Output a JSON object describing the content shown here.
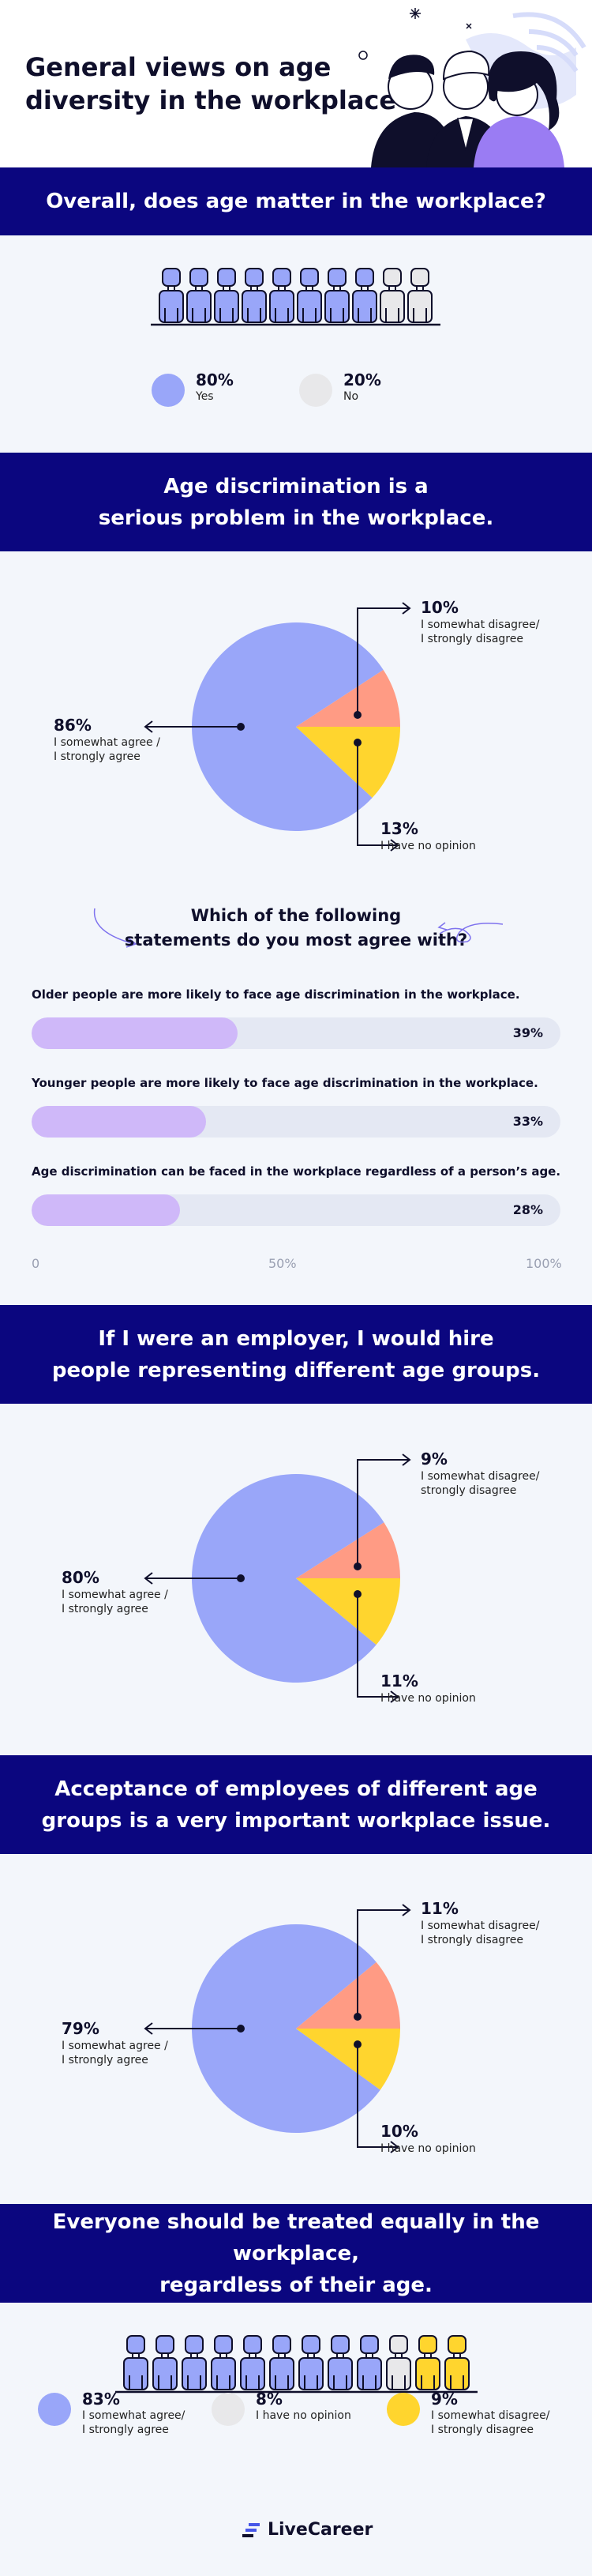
{
  "header": {
    "title_line1": "General views on age",
    "title_line2": "diversity in the workplace"
  },
  "colors": {
    "banner": "#0b067f",
    "blue": "#99a6f9",
    "salmon": "#ff9b84",
    "yellow": "#ffd52e",
    "grey": "#e8e8ea",
    "lavender": "#cfb8f9"
  },
  "section1": {
    "heading": "Overall, does age matter in the workplace?",
    "icon_fills": [
      "blue",
      "blue",
      "blue",
      "blue",
      "blue",
      "blue",
      "blue",
      "blue",
      "grey",
      "grey"
    ],
    "legend": [
      {
        "pct": "80%",
        "label": "Yes",
        "color": "blue"
      },
      {
        "pct": "20%",
        "label": "No",
        "color": "grey"
      }
    ]
  },
  "section2": {
    "heading_line1": "Age discrimination is a",
    "heading_line2": "serious problem in the workplace.",
    "chart_data": {
      "type": "pie",
      "values": [
        86,
        10,
        13
      ],
      "labels": [
        "I somewhat agree / I strongly agree",
        "I somewhat disagree/ I strongly disagree",
        "I have no opinion"
      ],
      "colors": [
        "#99a6f9",
        "#ff9b84",
        "#ffd52e"
      ]
    },
    "label_main_pct": "86%",
    "label_main_l1": "I somewhat agree /",
    "label_main_l2": "I strongly agree",
    "label_dis_pct": "10%",
    "label_dis_l1": "I somewhat disagree/",
    "label_dis_l2": "I strongly disagree",
    "label_no_pct": "13%",
    "label_no_l1": "I have no opinion"
  },
  "section3": {
    "question_line1": "Which of the following",
    "question_line2": "statements do you most agree with?",
    "chart_data": {
      "type": "bar",
      "categories": [
        "Older people are more likely to face age discrimination in the workplace.",
        "Younger people are more likely to face age discrimination in the workplace.",
        "Age discrimination can be faced in the workplace regardless of a person’s age."
      ],
      "values": [
        39,
        33,
        28
      ],
      "value_labels": [
        "39%",
        "33%",
        "28%"
      ],
      "xlim": [
        0,
        100
      ],
      "ticks": [
        "0",
        "50%",
        "100%"
      ]
    }
  },
  "section4": {
    "heading_line1": "If I were an employer, I would hire",
    "heading_line2": "people representing different age groups.",
    "chart_data": {
      "type": "pie",
      "values": [
        80,
        9,
        11
      ],
      "labels": [
        "I somewhat agree / I strongly agree",
        "I somewhat disagree/ I strongly disagree",
        "I have no opinion"
      ],
      "colors": [
        "#99a6f9",
        "#ff9b84",
        "#ffd52e"
      ]
    },
    "label_main_pct": "80%",
    "label_main_l1": "I somewhat agree /",
    "label_main_l2": "I strongly agree",
    "label_dis_pct": "9%",
    "label_dis_l1": "I somewhat disagree/",
    "label_dis_l2": "strongly disagree",
    "label_no_pct": "11%",
    "label_no_l1": "I have no opinion"
  },
  "section5": {
    "heading_line1": "Acceptance of employees of different age",
    "heading_line2": "groups is a very important workplace issue.",
    "chart_data": {
      "type": "pie",
      "values": [
        79,
        11,
        10
      ],
      "labels": [
        "I somewhat agree / I strongly agree",
        "I somewhat disagree/ I strongly disagree",
        "I have no opinion"
      ],
      "colors": [
        "#99a6f9",
        "#ff9b84",
        "#ffd52e"
      ]
    },
    "label_main_pct": "79%",
    "label_main_l1": "I somewhat agree /",
    "label_main_l2": "I strongly agree",
    "label_dis_pct": "11%",
    "label_dis_l1": "I somewhat disagree/",
    "label_dis_l2": "I strongly disagree",
    "label_no_pct": "10%",
    "label_no_l1": "I have no opinion"
  },
  "section6": {
    "heading_line1": "Everyone should be treated equally in the workplace,",
    "heading_line2": "regardless of their age.",
    "icon_fills": [
      "blue",
      "blue",
      "blue",
      "blue",
      "blue",
      "blue",
      "blue",
      "blue",
      "blue",
      "grey",
      "yellow",
      "yellow"
    ],
    "legend": [
      {
        "pct": "83%",
        "l1": "I somewhat agree/",
        "l2": "I strongly agree",
        "color": "blue"
      },
      {
        "pct": "8%",
        "l1": "I have no opinion",
        "l2": "",
        "color": "grey"
      },
      {
        "pct": "9%",
        "l1": "I somewhat disagree/",
        "l2": "I strongly disagree",
        "color": "yellow"
      }
    ]
  },
  "footer": {
    "logo_text": "LiveCareer"
  }
}
